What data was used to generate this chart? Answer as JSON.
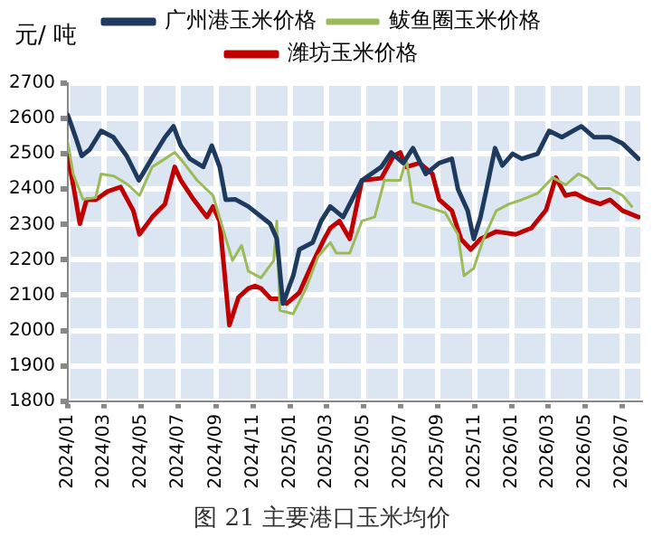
{
  "chart_data": {
    "type": "line",
    "title": "图 21 主要港口玉米均价",
    "ylabel": "元/ 吨",
    "xlim": [
      "2024-01-01",
      "2026-07-31"
    ],
    "xticks": [
      {
        "value": "2024-01",
        "label": "2024/01"
      },
      {
        "value": "2024-03",
        "label": "2024/03"
      },
      {
        "value": "2024-05",
        "label": "2024/05"
      },
      {
        "value": "2024-07",
        "label": "2024/07"
      },
      {
        "value": "2024-09",
        "label": "2024/09"
      },
      {
        "value": "2024-11",
        "label": "2024/11"
      },
      {
        "value": "2025-01",
        "label": "2025/01"
      },
      {
        "value": "2025-03",
        "label": "2025/03"
      },
      {
        "value": "2025-05",
        "label": "2025/05"
      },
      {
        "value": "2025-07",
        "label": "2025/07"
      },
      {
        "value": "2025-09",
        "label": "2025/09"
      },
      {
        "value": "2025-11",
        "label": "2025/11"
      },
      {
        "value": "2026-01",
        "label": "2026/01"
      },
      {
        "value": "2026-03",
        "label": "2026/03"
      },
      {
        "value": "2026-05",
        "label": "2026/05"
      },
      {
        "value": "2026-07",
        "label": "2026/07"
      }
    ],
    "ylim": [
      1800,
      2700
    ],
    "yticks": [
      1800,
      1900,
      2000,
      2100,
      2200,
      2300,
      2400,
      2500,
      2600,
      2700
    ],
    "grid": true,
    "legend": "top",
    "marker": "none",
    "line_style": "solid",
    "series": [
      {
        "name": "广州港玉米价格",
        "color": "#1f3a5f",
        "x": [
          "2024-01-01",
          "2024-01-14",
          "2024-01-24",
          "2024-02-06",
          "2024-02-25",
          "2024-03-16",
          "2024-04-07",
          "2024-04-27",
          "2024-05-18",
          "2024-06-09",
          "2024-06-23",
          "2024-07-05",
          "2024-07-20",
          "2024-08-11",
          "2024-08-25",
          "2024-09-07",
          "2024-09-17",
          "2024-10-03",
          "2024-10-24",
          "2024-11-29",
          "2024-12-10",
          "2024-12-20",
          "2025-01-06",
          "2025-01-16",
          "2025-02-07",
          "2025-02-21",
          "2025-03-08",
          "2025-03-29",
          "2025-04-29",
          "2025-05-31",
          "2025-06-16",
          "2025-07-06",
          "2025-07-22",
          "2025-08-12",
          "2025-09-03",
          "2025-09-24",
          "2025-10-04",
          "2025-10-20",
          "2025-10-30",
          "2025-11-10",
          "2025-11-20",
          "2025-12-04",
          "2025-12-16",
          "2026-01-02",
          "2026-01-17",
          "2026-02-12",
          "2026-03-03",
          "2026-03-24",
          "2026-04-25",
          "2026-05-16",
          "2026-06-11",
          "2026-07-02",
          "2026-07-28"
        ],
        "values": [
          2610,
          2547,
          2494,
          2512,
          2565,
          2547,
          2494,
          2425,
          2486,
          2547,
          2578,
          2523,
          2486,
          2463,
          2523,
          2463,
          2370,
          2371,
          2351,
          2302,
          2260,
          2076,
          2155,
          2229,
          2249,
          2310,
          2351,
          2321,
          2425,
          2463,
          2504,
          2474,
          2516,
          2443,
          2474,
          2486,
          2400,
          2339,
          2259,
          2320,
          2400,
          2516,
          2467,
          2500,
          2486,
          2500,
          2565,
          2547,
          2578,
          2547,
          2547,
          2529,
          2486
        ]
      },
      {
        "name": "鲅鱼圈玉米价格",
        "color": "#9bbb59",
        "x": [
          "2024-01-01",
          "2024-01-10",
          "2024-01-26",
          "2024-02-16",
          "2024-02-25",
          "2024-03-17",
          "2024-04-08",
          "2024-04-28",
          "2024-05-19",
          "2024-06-09",
          "2024-06-25",
          "2024-07-10",
          "2024-08-01",
          "2024-08-27",
          "2024-09-12",
          "2024-09-28",
          "2024-10-13",
          "2024-10-24",
          "2024-11-14",
          "2024-12-05",
          "2024-12-10",
          "2024-12-15",
          "2025-01-06",
          "2025-01-27",
          "2025-02-16",
          "2025-03-08",
          "2025-03-18",
          "2025-04-09",
          "2025-04-29",
          "2025-05-20",
          "2025-06-05",
          "2025-07-01",
          "2025-07-11",
          "2025-07-22",
          "2025-08-12",
          "2025-09-03",
          "2025-09-13",
          "2025-10-04",
          "2025-10-14",
          "2025-10-30",
          "2025-11-15",
          "2025-12-06",
          "2025-12-27",
          "2026-01-17",
          "2026-02-12",
          "2026-03-09",
          "2026-03-30",
          "2026-04-20",
          "2026-05-05",
          "2026-05-21",
          "2026-06-11",
          "2026-07-02",
          "2026-07-17"
        ],
        "values": [
          2535,
          2443,
          2371,
          2376,
          2443,
          2437,
          2414,
          2382,
          2463,
          2486,
          2504,
          2474,
          2425,
          2382,
          2290,
          2198,
          2241,
          2168,
          2149,
          2198,
          2310,
          2057,
          2047,
          2119,
          2210,
          2249,
          2219,
          2219,
          2310,
          2321,
          2425,
          2425,
          2486,
          2363,
          2351,
          2339,
          2333,
          2272,
          2155,
          2176,
          2259,
          2339,
          2358,
          2370,
          2388,
          2433,
          2412,
          2443,
          2431,
          2402,
          2402,
          2382,
          2351
        ]
      },
      {
        "name": "潍坊玉米价格",
        "color": "#c00000",
        "x": [
          "2024-01-01",
          "2024-01-10",
          "2024-01-21",
          "2024-02-01",
          "2024-02-16",
          "2024-03-07",
          "2024-03-28",
          "2024-04-18",
          "2024-04-28",
          "2024-05-19",
          "2024-06-09",
          "2024-06-25",
          "2024-07-05",
          "2024-07-26",
          "2024-08-17",
          "2024-08-27",
          "2024-09-07",
          "2024-09-23",
          "2024-10-08",
          "2024-10-24",
          "2024-11-04",
          "2024-11-14",
          "2024-11-30",
          "2024-12-15",
          "2024-12-26",
          "2025-01-16",
          "2025-02-06",
          "2025-02-26",
          "2025-03-08",
          "2025-03-23",
          "2025-04-09",
          "2025-04-19",
          "2025-04-29",
          "2025-05-31",
          "2025-06-20",
          "2025-07-01",
          "2025-07-11",
          "2025-08-02",
          "2025-08-23",
          "2025-09-03",
          "2025-09-24",
          "2025-10-09",
          "2025-10-25",
          "2025-11-10",
          "2025-12-06",
          "2026-01-07",
          "2026-02-02",
          "2026-02-26",
          "2026-03-14",
          "2026-03-30",
          "2026-04-15",
          "2026-05-05",
          "2026-05-26",
          "2026-06-11",
          "2026-07-02",
          "2026-07-28"
        ],
        "values": [
          2494,
          2412,
          2302,
          2370,
          2370,
          2394,
          2406,
          2339,
          2272,
          2321,
          2358,
          2463,
          2425,
          2371,
          2321,
          2351,
          2309,
          2015,
          2094,
          2119,
          2126,
          2119,
          2090,
          2090,
          2076,
          2107,
          2188,
          2259,
          2290,
          2310,
          2259,
          2341,
          2425,
          2431,
          2494,
          2504,
          2463,
          2474,
          2443,
          2371,
          2339,
          2259,
          2229,
          2259,
          2280,
          2272,
          2290,
          2341,
          2433,
          2382,
          2388,
          2370,
          2358,
          2370,
          2339,
          2321
        ]
      }
    ]
  }
}
